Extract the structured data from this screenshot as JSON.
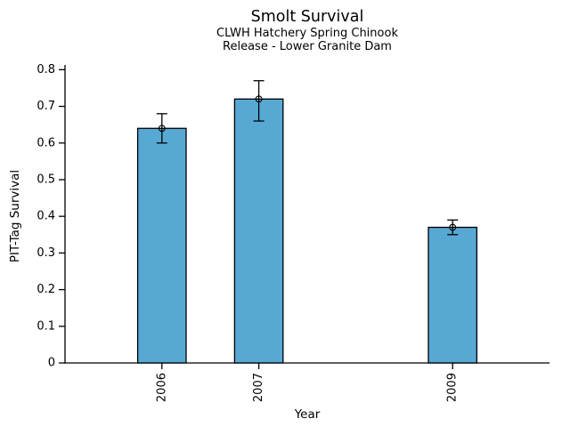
{
  "chart_data": {
    "type": "bar",
    "title": "Smolt Survival",
    "subtitle_line1": "CLWH Hatchery Spring Chinook",
    "subtitle_line2": "Release - Lower Granite Dam",
    "xlabel": "Year",
    "ylabel": "PIT-Tag Survival",
    "categories": [
      "2006",
      "2007",
      "2009"
    ],
    "x": [
      2006,
      2007,
      2009
    ],
    "values": [
      0.64,
      0.72,
      0.37
    ],
    "error_low": [
      0.6,
      0.66,
      0.35
    ],
    "error_high": [
      0.68,
      0.77,
      0.39
    ],
    "marker": "open-circle",
    "bar_color": "#57a9d4",
    "bar_edge_color": "#000000",
    "axis_color": "#000000",
    "background_color": "#ffffff",
    "bar_width_years": 0.5,
    "xlim": [
      2005,
      2010
    ],
    "ylim": [
      0,
      0.813
    ],
    "yticks": [
      0,
      0.1,
      0.2,
      0.3,
      0.4,
      0.5,
      0.6,
      0.7,
      0.8
    ],
    "ytick_labels": [
      "0",
      "0.1",
      "0.2",
      "0.3",
      "0.4",
      "0.5",
      "0.6",
      "0.7",
      "0.8"
    ],
    "xtick_label_rotation_deg": 90,
    "grid": false,
    "legend": null
  }
}
